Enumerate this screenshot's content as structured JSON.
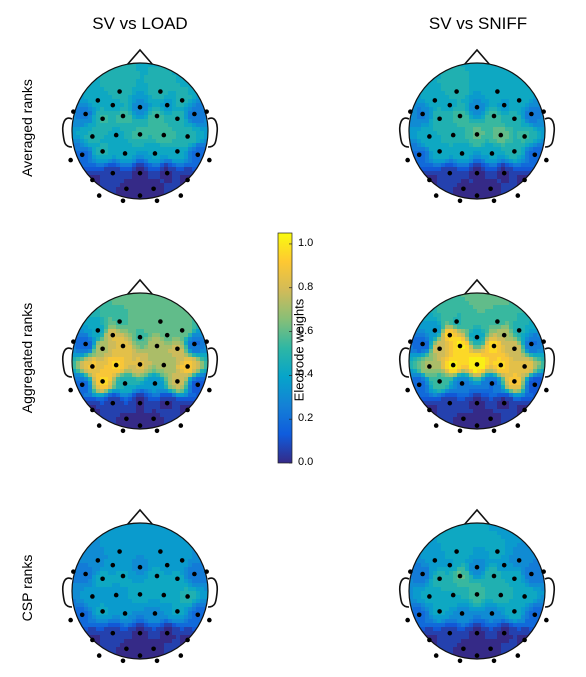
{
  "columns": [
    {
      "title": "SV vs LOAD"
    },
    {
      "title": "SV vs SNIFF"
    }
  ],
  "rows": [
    {
      "label": "Averaged ranks"
    },
    {
      "label": "Aggregated ranks"
    },
    {
      "label": "CSP ranks"
    }
  ],
  "colorbar": {
    "label": "Electrode weights",
    "ticks": [
      "1.0",
      "0.8",
      "0.6",
      "0.4",
      "0.2",
      "0.0"
    ],
    "tick_values": [
      1.0,
      0.8,
      0.6,
      0.4,
      0.2,
      0.0
    ],
    "min": 0.0,
    "max": 1.05,
    "colormap": [
      "#352a87",
      "#0f5cdd",
      "#1481d6",
      "#06a4ca",
      "#2eb7a4",
      "#87bf77",
      "#d1bb59",
      "#fec832",
      "#f9fb0e"
    ]
  },
  "maps": [
    {
      "row": 0,
      "col": 0,
      "weights": [
        0.45,
        0.5,
        0.48,
        0.47,
        0.52,
        0.54,
        0.55,
        0.5,
        0.46,
        0.44,
        0.52,
        0.56,
        0.5,
        0.46,
        0.42,
        0.4,
        0.45,
        0.4,
        0.35,
        0.3,
        0.25,
        0.22,
        0.2,
        0.18,
        0.05,
        0.02,
        0.02,
        0.02,
        0.02,
        0.02,
        0.02,
        0.02
      ]
    },
    {
      "row": 0,
      "col": 1,
      "weights": [
        0.45,
        0.48,
        0.45,
        0.45,
        0.5,
        0.55,
        0.55,
        0.48,
        0.45,
        0.48,
        0.58,
        0.6,
        0.52,
        0.45,
        0.42,
        0.4,
        0.48,
        0.42,
        0.36,
        0.3,
        0.26,
        0.24,
        0.2,
        0.18,
        0.05,
        0.02,
        0.02,
        0.02,
        0.02,
        0.02,
        0.02,
        0.02
      ]
    },
    {
      "row": 1,
      "col": 0,
      "weights": [
        0.4,
        0.55,
        0.6,
        0.62,
        0.75,
        0.85,
        0.75,
        0.78,
        0.88,
        0.95,
        0.82,
        0.7,
        0.9,
        0.95,
        0.45,
        0.35,
        0.8,
        0.82,
        0.6,
        0.55,
        0.15,
        0.2,
        0.18,
        0.12,
        0.05,
        0.02,
        0.02,
        0.02,
        0.02,
        0.02,
        0.02,
        0.02
      ]
    },
    {
      "row": 1,
      "col": 1,
      "weights": [
        0.35,
        0.5,
        0.55,
        0.45,
        0.8,
        1.0,
        0.95,
        0.8,
        0.7,
        1.0,
        1.05,
        0.95,
        0.85,
        0.55,
        0.25,
        0.2,
        0.9,
        0.95,
        0.75,
        0.4,
        0.15,
        0.2,
        0.18,
        0.1,
        0.05,
        0.02,
        0.02,
        0.02,
        0.02,
        0.02,
        0.02,
        0.02
      ]
    },
    {
      "row": 2,
      "col": 0,
      "weights": [
        0.3,
        0.38,
        0.36,
        0.34,
        0.42,
        0.4,
        0.45,
        0.42,
        0.36,
        0.38,
        0.42,
        0.4,
        0.48,
        0.4,
        0.34,
        0.32,
        0.4,
        0.36,
        0.34,
        0.3,
        0.24,
        0.22,
        0.2,
        0.18,
        0.05,
        0.02,
        0.02,
        0.02,
        0.02,
        0.02,
        0.02,
        0.02
      ]
    },
    {
      "row": 2,
      "col": 1,
      "weights": [
        0.35,
        0.45,
        0.4,
        0.3,
        0.5,
        0.58,
        0.5,
        0.45,
        0.4,
        0.45,
        0.55,
        0.5,
        0.45,
        0.4,
        0.32,
        0.3,
        0.42,
        0.38,
        0.34,
        0.3,
        0.24,
        0.22,
        0.2,
        0.18,
        0.05,
        0.02,
        0.02,
        0.02,
        0.02,
        0.02,
        0.02,
        0.02
      ]
    }
  ]
}
